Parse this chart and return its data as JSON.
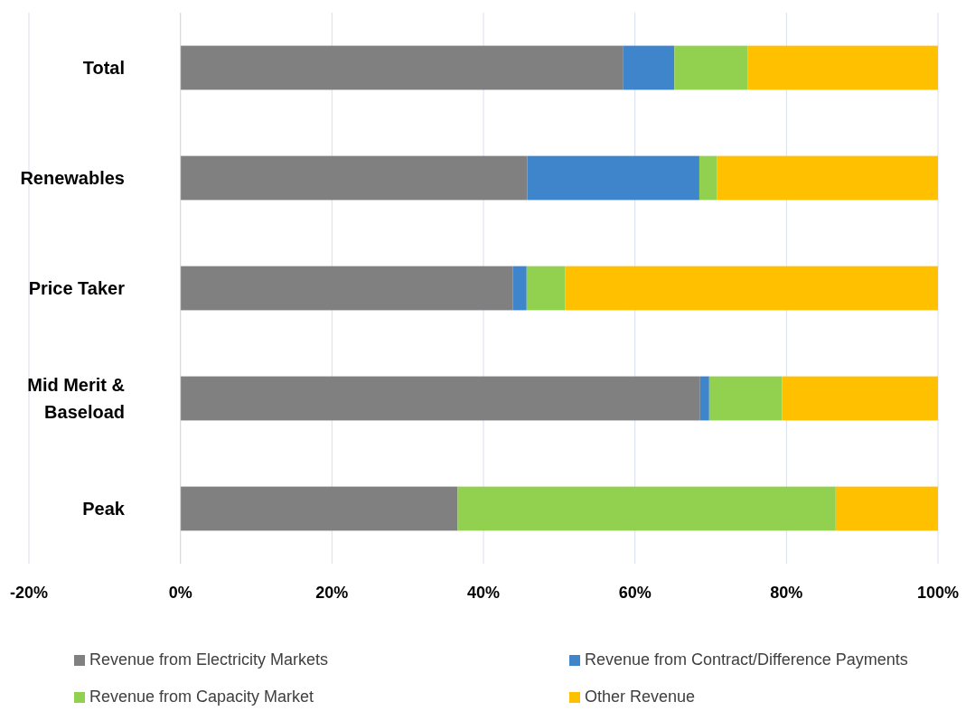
{
  "chart_data": {
    "type": "bar",
    "orientation": "horizontal",
    "stacked": true,
    "categories": [
      "Total",
      "Renewables",
      "Price Taker",
      "Mid Merit & Baseload",
      "Peak"
    ],
    "series": [
      {
        "name": "Revenue from Electricity Markets",
        "color": "#808080",
        "values": [
          58.4,
          45.8,
          43.9,
          68.6,
          36.6
        ]
      },
      {
        "name": "Revenue from Contract/Difference Payments",
        "color": "#3f85cc",
        "values": [
          6.8,
          22.7,
          1.8,
          1.2,
          0
        ]
      },
      {
        "name": "Revenue from Capacity Market",
        "color": "#92d050",
        "values": [
          9.7,
          2.3,
          5.1,
          9.6,
          49.9
        ]
      },
      {
        "name": "Other Revenue",
        "color": "#ffc000",
        "values": [
          25.1,
          29.2,
          49.2,
          20.6,
          13.5
        ]
      }
    ],
    "xlim": [
      -20,
      100
    ],
    "xticks": [
      {
        "value": -20,
        "label": "-20%"
      },
      {
        "value": 0,
        "label": "0%"
      },
      {
        "value": 20,
        "label": "20%"
      },
      {
        "value": 40,
        "label": "40%"
      },
      {
        "value": 60,
        "label": "60%"
      },
      {
        "value": 80,
        "label": "80%"
      },
      {
        "value": 100,
        "label": "100%"
      }
    ],
    "grid": "x",
    "legend": "bottom"
  }
}
